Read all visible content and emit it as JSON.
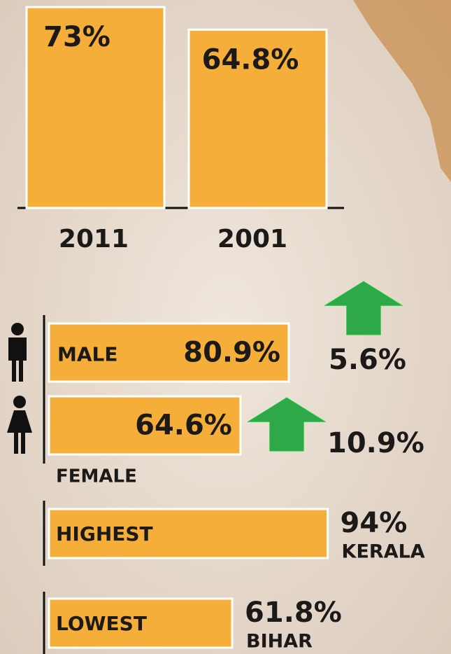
{
  "chart_data": [
    {
      "type": "bar",
      "categories": [
        "2011",
        "2001"
      ],
      "values": [
        73,
        64.8
      ],
      "value_labels": [
        "73%",
        "64.8%"
      ],
      "color": "#f5ae3a"
    },
    {
      "type": "barh",
      "categories": [
        "MALE",
        "FEMALE"
      ],
      "values": [
        80.9,
        64.6
      ],
      "value_labels": [
        "80.9%",
        "64.6%"
      ],
      "color": "#f5ae3a",
      "changes": {
        "values": [
          5.6,
          10.9
        ],
        "value_labels": [
          "5.6%",
          "10.9%"
        ],
        "color": "#2fa84a"
      }
    },
    {
      "type": "barh",
      "categories": [
        "HIGHEST",
        "LOWEST"
      ],
      "values": [
        94,
        61.8
      ],
      "value_labels": [
        "94%",
        "61.8%"
      ],
      "states": [
        "KERALA",
        "BIHAR"
      ],
      "color": "#f5ae3a"
    }
  ]
}
